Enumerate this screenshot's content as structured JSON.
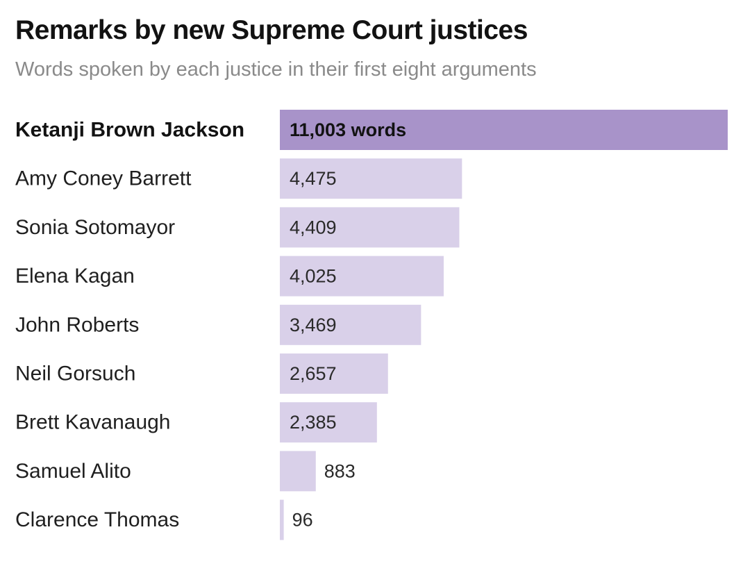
{
  "chart_data": {
    "type": "bar",
    "orientation": "horizontal",
    "title": "Remarks by new Supreme Court justices",
    "subtitle": "Words spoken by each justice in their first eight arguments",
    "categories": [
      "Ketanji Brown Jackson",
      "Amy Coney Barrett",
      "Sonia Sotomayor",
      "Elena Kagan",
      "John Roberts",
      "Neil Gorsuch",
      "Brett Kavanaugh",
      "Samuel Alito",
      "Clarence Thomas"
    ],
    "values": [
      11003,
      4475,
      4409,
      4025,
      3469,
      2657,
      2385,
      883,
      96
    ],
    "value_labels": [
      "11,003 words",
      "4,475",
      "4,409",
      "4,025",
      "3,469",
      "2,657",
      "2,385",
      "883",
      "96"
    ],
    "highlight_index": 0,
    "xlim": [
      0,
      11003
    ],
    "grid": false,
    "legend": "none",
    "colors": {
      "highlight_bar": "#a893c9",
      "bar": "#d9d0e9",
      "title": "#121212",
      "subtitle": "#8a8a8a"
    }
  }
}
